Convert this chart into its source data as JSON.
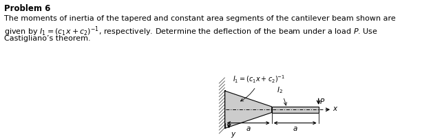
{
  "title": "Problem 6",
  "text_line1": "The moments of inertia of the tapered and constant area segments of the cantilever beam shown are",
  "text_line2": "given by $I_1 =(c_1x+c_2)^{-1}$, respectively. Determine the deflection of the beam under a load $P$. Use",
  "text_line3": "Castigliano’s theorem.",
  "fig_width": 6.13,
  "fig_height": 2.02,
  "dpi": 100,
  "beam_fill_color": "#cccccc",
  "label_I1": "$I_1=(c_1x+c_2)^{-1}$",
  "label_I2": "$I_2$",
  "label_P": "$P$",
  "label_x": "$x$",
  "label_y": "$y$",
  "label_a1": "$a$",
  "label_a2": "$a$"
}
